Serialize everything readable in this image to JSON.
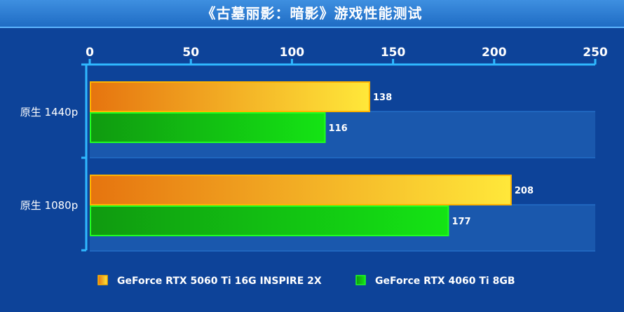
{
  "chart_data": {
    "type": "bar",
    "orientation": "horizontal",
    "title": "《古墓丽影：暗影》游戏性能测试",
    "categories": [
      "原生 1440p",
      "原生 1080p"
    ],
    "series": [
      {
        "name": "GeForce RTX 5060 Ti 16G INSPIRE 2X",
        "values": [
          138,
          208
        ],
        "color": "#f5c61a"
      },
      {
        "name": "GeForce RTX 4060 Ti 8GB",
        "values": [
          116,
          177
        ],
        "color": "#16c616"
      }
    ],
    "xlim": [
      0,
      250
    ],
    "xticks": [
      0,
      50,
      100,
      150,
      200,
      250
    ],
    "xlabel": "",
    "ylabel": "",
    "legend_position": "bottom-center",
    "grid": true
  },
  "colors": {
    "background": "#0a3f93",
    "gold_start": "#e6740f",
    "gold_end": "#ffe83a",
    "gold_border": "#ffb400",
    "green_start": "#109a10",
    "green_end": "#14e414",
    "green_border": "#20ff20",
    "axis": "#2fb8ff"
  }
}
